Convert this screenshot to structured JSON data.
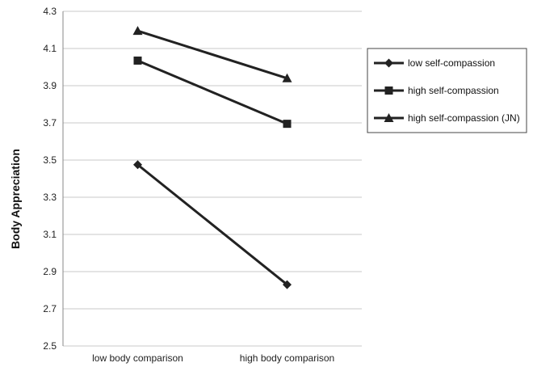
{
  "chart_data": {
    "type": "line",
    "title": "",
    "xlabel": "",
    "ylabel": "Body Appreciation",
    "categories": [
      "low body comparison",
      "high body comparison"
    ],
    "ylim": [
      2.5,
      4.3
    ],
    "yticks": [
      "2.5",
      "2.7",
      "2.9",
      "3.1",
      "3.3",
      "3.5",
      "3.7",
      "3.9",
      "4.1",
      "4.3"
    ],
    "grid": "horizontal",
    "legend_position": "right",
    "series": [
      {
        "name": "low self-compassion",
        "marker": "diamond",
        "color": "#222222",
        "values": [
          3.475,
          2.83
        ]
      },
      {
        "name": "high self-compassion",
        "marker": "square",
        "color": "#222222",
        "values": [
          4.035,
          3.695
        ]
      },
      {
        "name": "high self-compassion (JN)",
        "marker": "triangle",
        "color": "#222222",
        "values": [
          4.195,
          3.94
        ]
      }
    ]
  }
}
